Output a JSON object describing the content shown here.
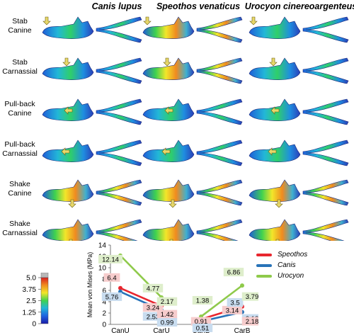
{
  "figure": {
    "species": [
      "Canis lupus",
      "Speothos venaticus",
      "Urocyon cinereoargenteus"
    ],
    "rows": [
      {
        "line1": "Stab",
        "line2": "Canine"
      },
      {
        "line1": "Stab",
        "line2": "Carnassial"
      },
      {
        "line1": "Pull-back",
        "line2": "Canine"
      },
      {
        "line1": "Pull-back",
        "line2": "Carnassial"
      },
      {
        "line1": "Shake",
        "line2": "Canine"
      },
      {
        "line1": "Shake",
        "line2": "Carnassial"
      }
    ],
    "colorbar": {
      "ticks": [
        "5.0",
        "3.75",
        "2.5",
        "1.25",
        "0"
      ],
      "colors": [
        "#1a1aa8",
        "#1f62e0",
        "#22b7d8",
        "#3fd24f",
        "#f2e62a",
        "#f08a1f",
        "#d81f1f"
      ],
      "cap_color": "#b8b8b8"
    }
  },
  "chart_data": {
    "type": "line",
    "categories": [
      "CanU",
      "CarU",
      "CanB",
      "CarB"
    ],
    "ylabel": "Mean von Mises (MPa)",
    "ylim": [
      0,
      14
    ],
    "yticks": [
      0,
      2,
      4,
      6,
      8,
      10,
      12,
      14
    ],
    "grid": false,
    "legend_position": "top-right",
    "series": [
      {
        "name": "Speothos",
        "color": "#e8262e",
        "label_bg": "#f6cccc",
        "segments": [
          [
            0,
            1
          ],
          [
            2,
            3
          ]
        ],
        "values": [
          6.4,
          3.24,
          0.91,
          3.14
        ]
      },
      {
        "name": "Canis",
        "color": "#2873b8",
        "label_bg": "#c8dcef",
        "segments": [
          [
            0,
            1
          ],
          [
            2,
            3
          ]
        ],
        "values": [
          5.76,
          2.53,
          0.51,
          2.18
        ]
      },
      {
        "name": "Urocyon",
        "color": "#8fca4b",
        "label_bg": "#deeecb",
        "segments": [
          [
            0,
            1
          ],
          [
            2,
            3
          ]
        ],
        "values": [
          12.14,
          4.77,
          1.38,
          6.86
        ]
      }
    ],
    "extra_labels": [
      {
        "category": "CarU",
        "value": 2.17,
        "text": "2.17",
        "series": "Urocyon"
      },
      {
        "category": "CarU",
        "value": 1.42,
        "text": "1.42",
        "series": "Speothos"
      },
      {
        "category": "CarU",
        "value": 0.99,
        "text": "0.99",
        "series": "Canis"
      },
      {
        "category": "CarB",
        "value": 3.5,
        "text": "3.5",
        "series": "Canis"
      },
      {
        "category": "CarB",
        "value": 3.79,
        "text": "3.79",
        "series": "Urocyon"
      },
      {
        "category": "CarB",
        "value": 2.18,
        "text": "2.18",
        "series": "Speothos"
      }
    ]
  }
}
